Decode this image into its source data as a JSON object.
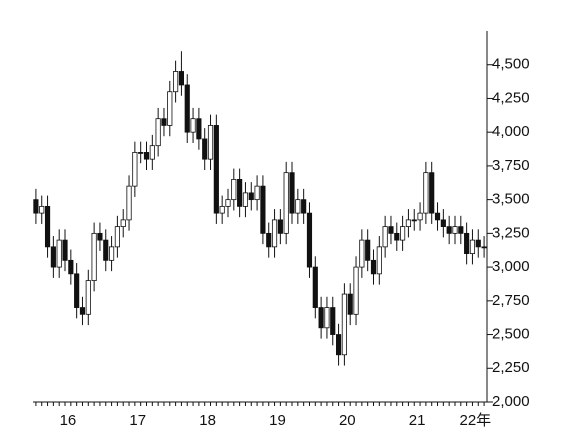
{
  "chart_data": {
    "type": "candlestick",
    "open": [
      3500,
      3400,
      3450,
      3150,
      3000,
      3200,
      3050,
      2950,
      2700,
      2650,
      2900,
      3250,
      3200,
      3050,
      3150,
      3300,
      3350,
      3600,
      3850,
      3850,
      3800,
      3900,
      4100,
      4050,
      4300,
      4450,
      4350,
      4000,
      4100,
      3950,
      3800,
      4050,
      3400,
      3450,
      3500,
      3650,
      3450,
      3550,
      3500,
      3600,
      3250,
      3150,
      3350,
      3250,
      3700,
      3400,
      3500,
      3400,
      3000,
      2700,
      2550,
      2700,
      2500,
      2350,
      2800,
      2650,
      3000,
      3200,
      3050,
      2950,
      3150,
      3300,
      3250,
      3200,
      3300,
      3350,
      3350,
      3400,
      3700,
      3400,
      3350,
      3300,
      3250,
      3300,
      3250,
      3100,
      3200,
      3150
    ],
    "high": [
      3580,
      3530,
      3530,
      3230,
      3280,
      3280,
      3130,
      3030,
      2780,
      2980,
      3330,
      3330,
      3280,
      3230,
      3380,
      3430,
      3680,
      3930,
      3930,
      3930,
      3980,
      4180,
      4180,
      4380,
      4530,
      4600,
      4430,
      4180,
      4180,
      4030,
      4130,
      4130,
      3530,
      3580,
      3730,
      3730,
      3630,
      3630,
      3680,
      3680,
      3330,
      3430,
      3430,
      3780,
      3780,
      3580,
      3580,
      3480,
      3080,
      2780,
      2780,
      2780,
      2580,
      2880,
      2880,
      3080,
      3280,
      3280,
      3130,
      3230,
      3380,
      3380,
      3330,
      3380,
      3430,
      3430,
      3480,
      3780,
      3780,
      3480,
      3430,
      3380,
      3380,
      3380,
      3330,
      3280,
      3280,
      3230
    ],
    "low": [
      3320,
      3320,
      3070,
      2920,
      2920,
      2970,
      2870,
      2620,
      2570,
      2570,
      2820,
      3120,
      2970,
      2970,
      3070,
      3220,
      3270,
      3520,
      3770,
      3720,
      3720,
      3820,
      3970,
      3970,
      4220,
      4270,
      3920,
      3920,
      3870,
      3720,
      3720,
      3320,
      3320,
      3370,
      3420,
      3370,
      3370,
      3420,
      3420,
      3170,
      3070,
      3070,
      3170,
      3170,
      3320,
      3320,
      3320,
      2920,
      2620,
      2470,
      2470,
      2420,
      2270,
      2270,
      2570,
      2570,
      2920,
      2970,
      2870,
      2870,
      3070,
      3170,
      3120,
      3120,
      3220,
      3270,
      3270,
      3320,
      3320,
      3270,
      3220,
      3170,
      3170,
      3170,
      3020,
      3020,
      3070,
      3070
    ],
    "close": [
      3400,
      3450,
      3150,
      3000,
      3200,
      3050,
      2950,
      2700,
      2650,
      2900,
      3250,
      3200,
      3050,
      3150,
      3300,
      3350,
      3600,
      3850,
      3850,
      3800,
      3900,
      4100,
      4050,
      4300,
      4450,
      4350,
      4000,
      4100,
      3950,
      3800,
      4050,
      3400,
      3450,
      3500,
      3650,
      3450,
      3550,
      3500,
      3600,
      3250,
      3150,
      3350,
      3250,
      3700,
      3400,
      3500,
      3400,
      3000,
      2700,
      2550,
      2700,
      2500,
      2350,
      2800,
      2650,
      3000,
      3200,
      3050,
      2950,
      3150,
      3300,
      3250,
      3200,
      3300,
      3350,
      3350,
      3400,
      3700,
      3400,
      3350,
      3300,
      3250,
      3300,
      3250,
      3100,
      3200,
      3150,
      3150
    ],
    "up_color": "#ffffff",
    "down_color": "#111111",
    "xlim": [
      -0.5,
      77.5
    ],
    "xticks": [
      {
        "value": 5.5,
        "label": "16"
      },
      {
        "value": 17.5,
        "label": "17"
      },
      {
        "value": 29.5,
        "label": "18"
      },
      {
        "value": 41.5,
        "label": "19"
      },
      {
        "value": 53.5,
        "label": "20"
      },
      {
        "value": 65.5,
        "label": "21"
      },
      {
        "value": 75.5,
        "label": "22年"
      }
    ],
    "ylim": [
      2000,
      4750
    ],
    "yticks": [
      {
        "value": 2000,
        "label": "2,000"
      },
      {
        "value": 2250,
        "label": "2,250"
      },
      {
        "value": 2500,
        "label": "2,500"
      },
      {
        "value": 2750,
        "label": "2,750"
      },
      {
        "value": 3000,
        "label": "3,000"
      },
      {
        "value": 3250,
        "label": "3,250"
      },
      {
        "value": 3500,
        "label": "3,500"
      },
      {
        "value": 3750,
        "label": "3,750"
      },
      {
        "value": 4000,
        "label": "4,000"
      },
      {
        "value": 4250,
        "label": "4,250"
      },
      {
        "value": 4500,
        "label": "4,500"
      },
      {
        "value": {
          "_": 0
        },
        "label": ""
      }
    ]
  }
}
